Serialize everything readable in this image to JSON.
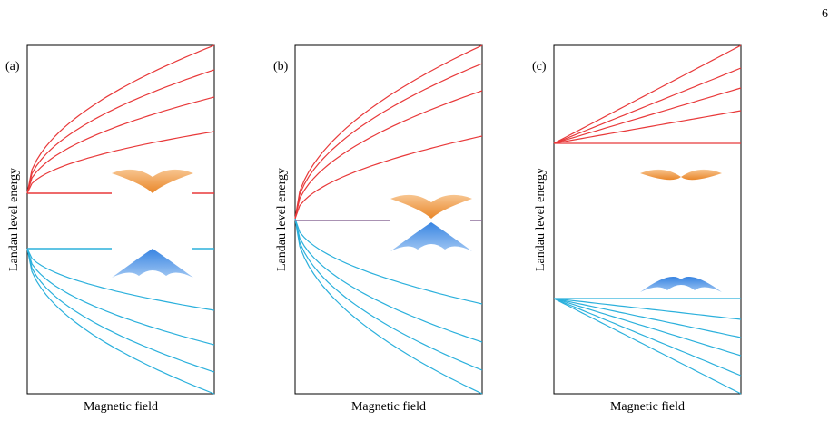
{
  "page_number": "6",
  "panels": [
    {
      "label": "(a)",
      "y_label": "Landau level energy",
      "x_label": "Magnetic field"
    },
    {
      "label": "(b)",
      "y_label": "Landau level energy",
      "x_label": "Magnetic field"
    },
    {
      "label": "(c)",
      "y_label": "Landau level energy",
      "x_label": "Magnetic field"
    }
  ]
}
